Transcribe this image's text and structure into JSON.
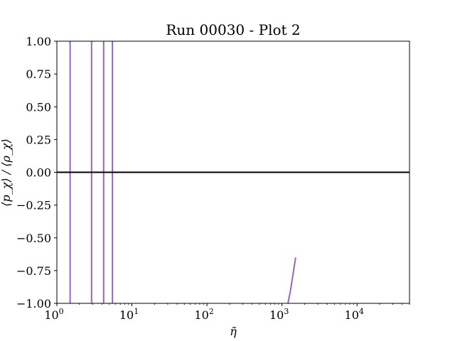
{
  "chart_data": {
    "type": "line",
    "title": "Run 00030 - Plot 2",
    "xlabel": "η̃",
    "ylabel": "⟨p_χ⟩ / ⟨ρ_χ⟩",
    "xscale": "log",
    "xlim": [
      1,
      50000
    ],
    "ylim": [
      -1.0,
      1.0
    ],
    "grid": false,
    "legend": "none",
    "yticks": [
      "−1.00",
      "−0.75",
      "−0.50",
      "−0.25",
      "0.00",
      "0.25",
      "0.50",
      "0.75",
      "1.00"
    ],
    "ytick_values": [
      -1.0,
      -0.75,
      -0.5,
      -0.25,
      0.0,
      0.25,
      0.5,
      0.75,
      1.0
    ],
    "xticks": [
      {
        "value": 1,
        "base": "10",
        "exp": "0"
      },
      {
        "value": 10,
        "base": "10",
        "exp": "1"
      },
      {
        "value": 100,
        "base": "10",
        "exp": "2"
      },
      {
        "value": 1000,
        "base": "10",
        "exp": "3"
      },
      {
        "value": 10000,
        "base": "10",
        "exp": "4"
      }
    ],
    "reference_line": {
      "y": 0.0,
      "color": "#000000"
    },
    "series_color": "#9467bd",
    "series": [
      {
        "segments": [
          {
            "x": [
              1.5,
              1.5
            ],
            "y": [
              -1.0,
              1.0
            ]
          },
          {
            "x": [
              2.9,
              2.9
            ],
            "y": [
              -1.0,
              1.0
            ]
          },
          {
            "x": [
              4.2,
              4.2
            ],
            "y": [
              -1.0,
              1.0
            ]
          },
          {
            "x": [
              5.5,
              5.5
            ],
            "y": [
              -1.0,
              1.0
            ]
          },
          {
            "x": [
              1200,
              1300,
              1400,
              1520
            ],
            "y": [
              -1.0,
              -0.9,
              -0.78,
              -0.65
            ]
          }
        ]
      }
    ]
  }
}
